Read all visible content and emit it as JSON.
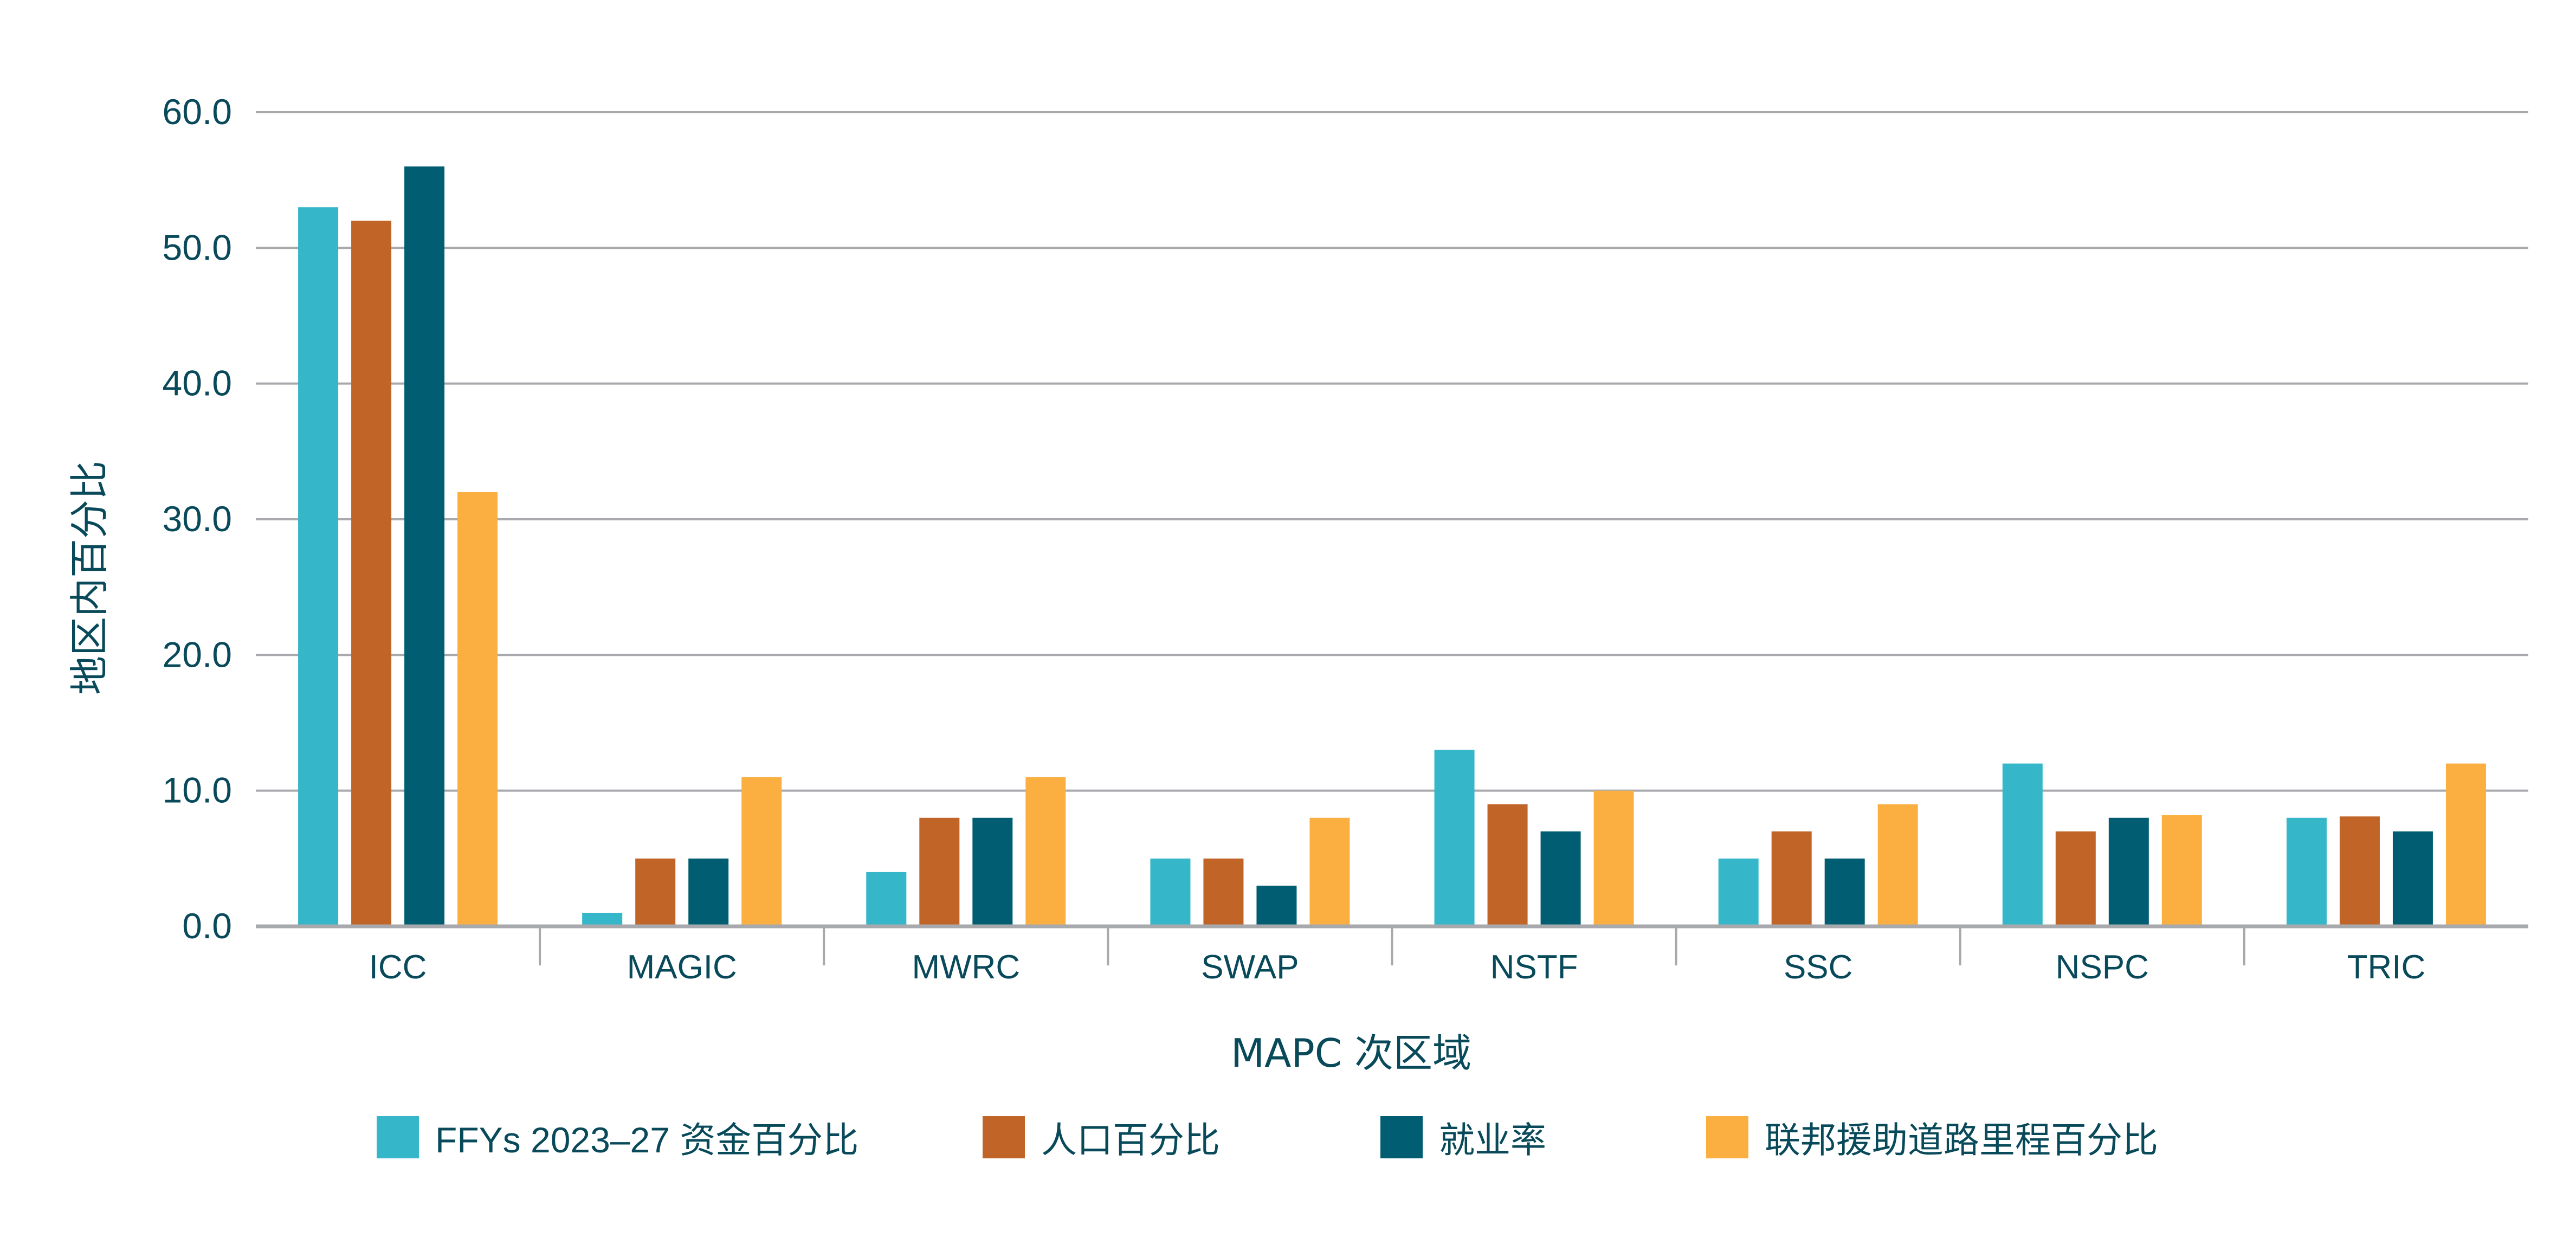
{
  "chart_data": {
    "type": "bar",
    "title": "",
    "xlabel": "MAPC 次区域",
    "ylabel": "地区内百分比",
    "ylim": [
      0,
      60
    ],
    "yticks": [
      "0.0",
      "10.0",
      "20.0",
      "30.0",
      "40.0",
      "50.0",
      "60.0"
    ],
    "grid": true,
    "legend_position": "bottom",
    "categories": [
      "ICC",
      "MAGIC",
      "MWRC",
      "SWAP",
      "NSTF",
      "SSC",
      "NSPC",
      "TRIC"
    ],
    "series": [
      {
        "name": "FFYs 2023–27 资金百分比",
        "color": "#35b7c9",
        "values": [
          53,
          1,
          4,
          5,
          13,
          5,
          12,
          8
        ]
      },
      {
        "name": "人口百分比",
        "color": "#c06527",
        "values": [
          52,
          5,
          8,
          5,
          9,
          7,
          7,
          8.1
        ]
      },
      {
        "name": "就业率",
        "color": "#015e72",
        "values": [
          56,
          5,
          8,
          3,
          7,
          5,
          8,
          7
        ]
      },
      {
        "name": "联邦援助道路里程百分比",
        "color": "#fbaf41",
        "values": [
          32,
          11,
          11,
          8,
          10,
          9,
          8.2,
          12
        ]
      }
    ]
  }
}
